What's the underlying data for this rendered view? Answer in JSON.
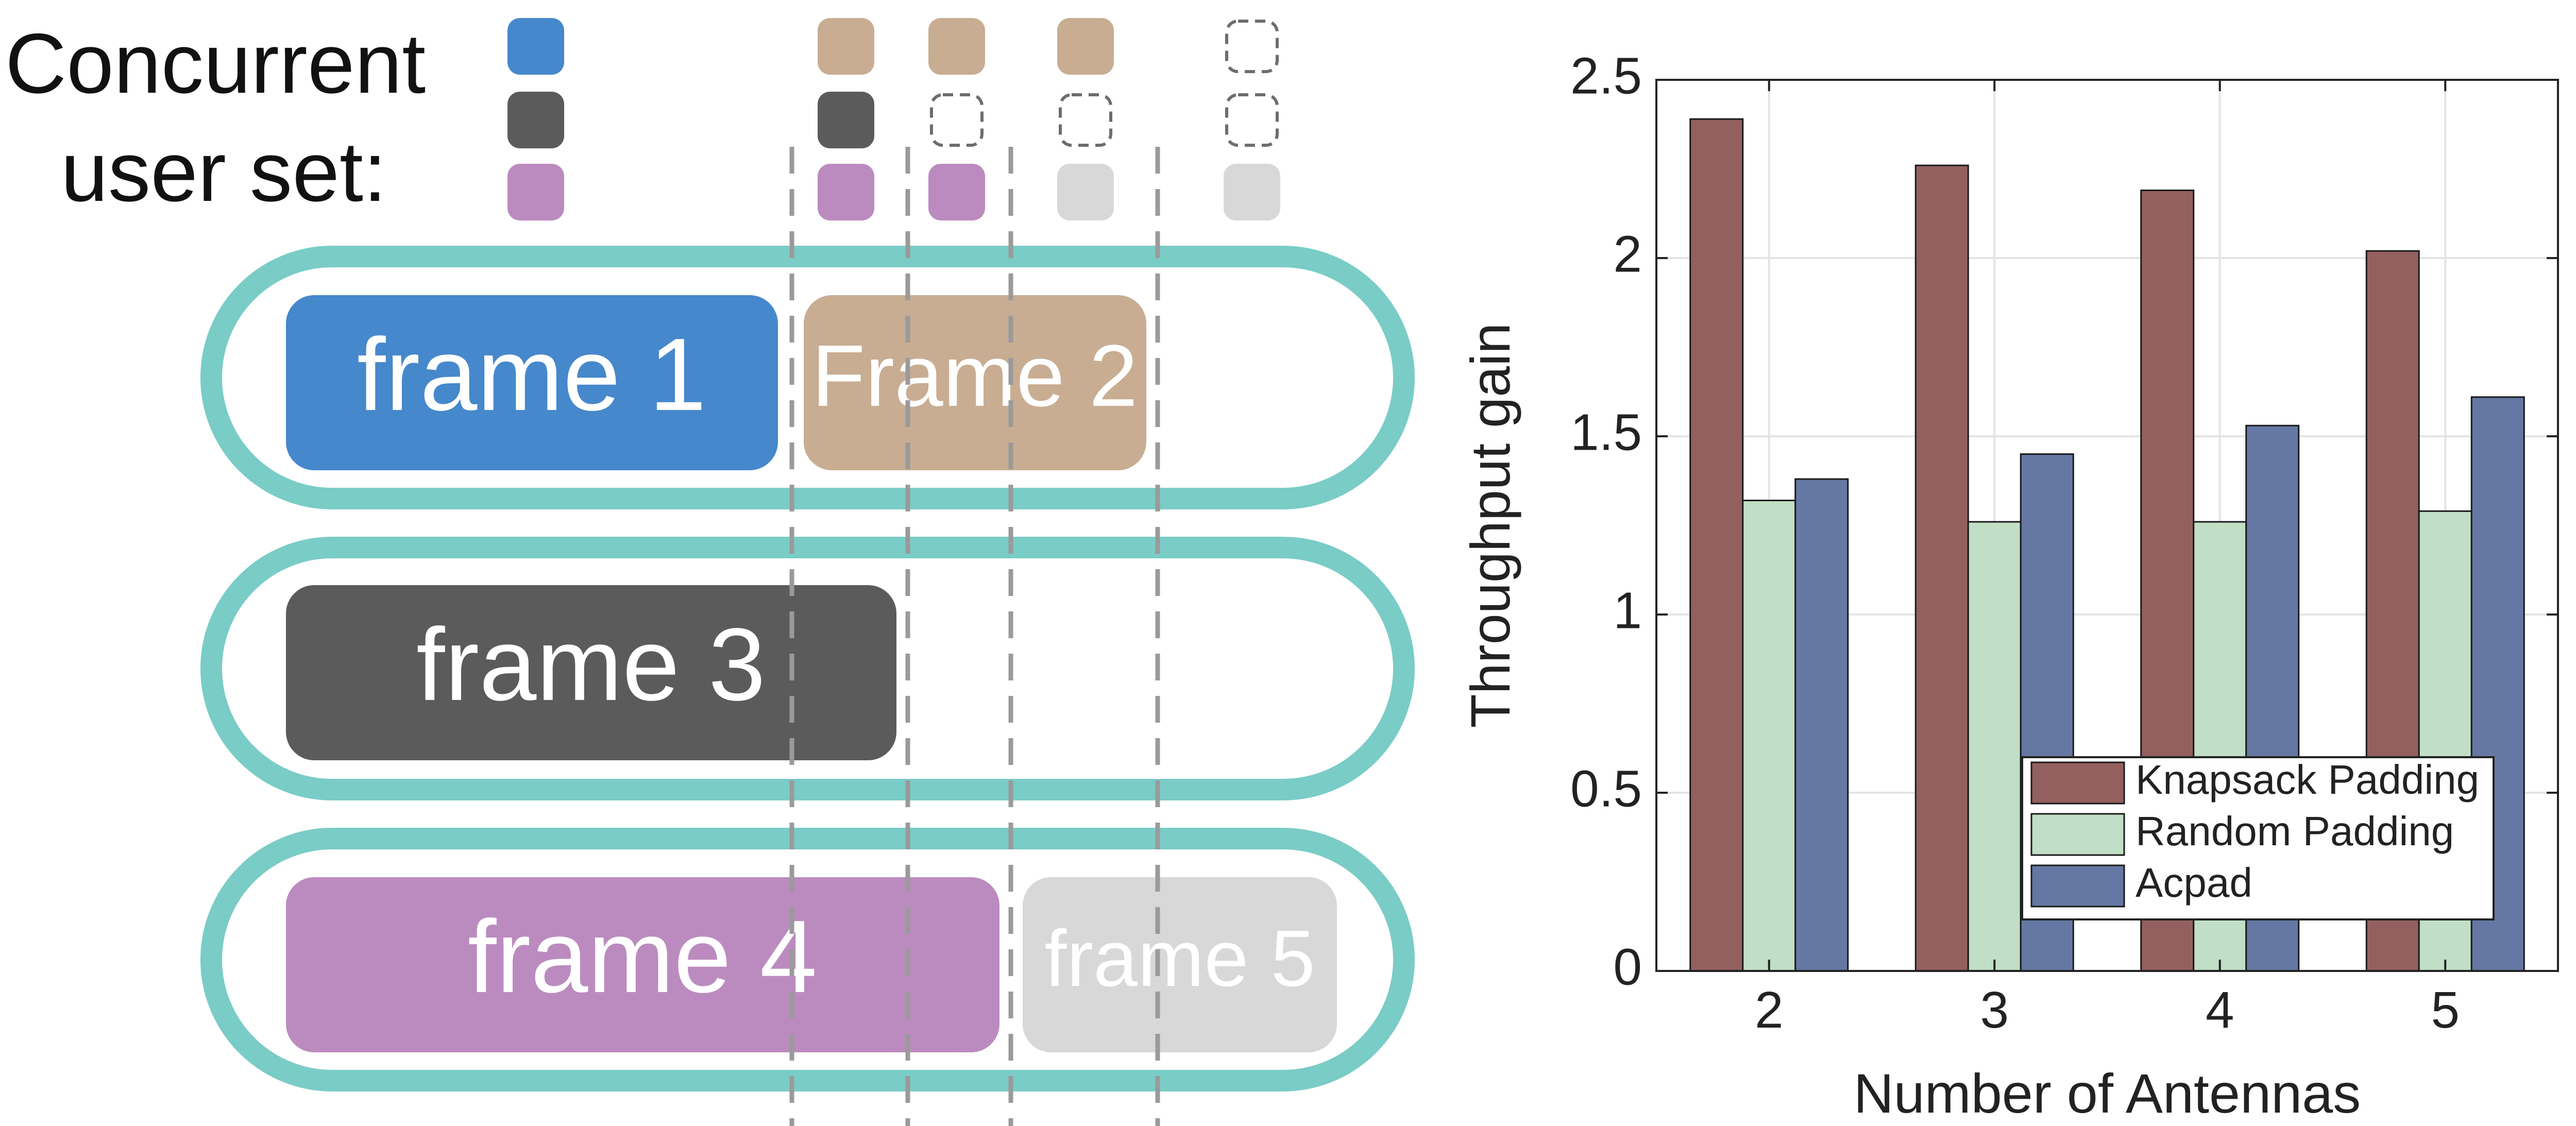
{
  "diagram": {
    "legend_label_line1": "Concurrent",
    "legend_label_line2": "user set:",
    "frames": [
      {
        "label": "frame 1",
        "color": "#4688cc"
      },
      {
        "label": "Frame 2",
        "color": "#c8ad92"
      },
      {
        "label": "frame 3",
        "color": "#5b5b5b"
      },
      {
        "label": "frame 4",
        "color": "#bb8bbf"
      },
      {
        "label": "frame 5",
        "color": "#d8d8d8"
      }
    ],
    "lane_color": "#7accc6",
    "divider_color": "#9a9a9a",
    "empty_slot_color": "#6d6d6d"
  },
  "chart_data": {
    "type": "bar",
    "title": "",
    "xlabel": "Number of Antennas",
    "ylabel": "Throughput gain",
    "categories": [
      "2",
      "3",
      "4",
      "5"
    ],
    "ylim": [
      0,
      2.5
    ],
    "yticks": [
      "0",
      "0.5",
      "1",
      "1.5",
      "2",
      "2.5"
    ],
    "grid": true,
    "legend_position": "bottom-right",
    "series": [
      {
        "name": "Knapsack Padding",
        "color": "#93605f",
        "values": [
          2.39,
          2.26,
          2.19,
          2.02
        ]
      },
      {
        "name": "Random Padding",
        "color": "#c0dfc6",
        "values": [
          1.32,
          1.26,
          1.26,
          1.29
        ]
      },
      {
        "name": "Acpad",
        "color": "#6478a3",
        "values": [
          1.38,
          1.45,
          1.53,
          1.61
        ]
      }
    ]
  }
}
